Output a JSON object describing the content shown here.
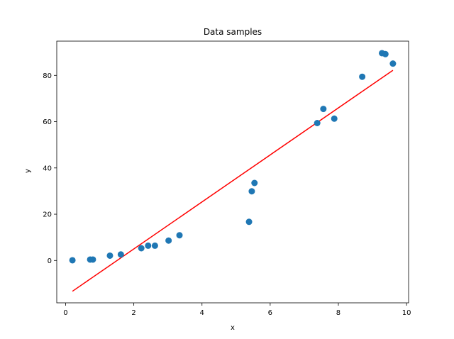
{
  "chart_data": {
    "type": "scatter",
    "title": "Data samples",
    "xlabel": "x",
    "ylabel": "y",
    "xlim": [
      -0.26,
      10.06
    ],
    "ylim": [
      -18.3,
      94.8
    ],
    "xticks": [
      0,
      2,
      4,
      6,
      8,
      10
    ],
    "yticks": [
      0,
      20,
      40,
      60,
      80
    ],
    "grid": false,
    "colors": {
      "points": "#1f77b4",
      "line": "#ff0000"
    },
    "series": [
      {
        "kind": "points",
        "x": [
          0.2,
          0.72,
          0.8,
          1.3,
          1.62,
          2.22,
          2.42,
          2.62,
          3.02,
          3.34,
          5.38,
          5.46,
          5.54,
          7.38,
          7.56,
          7.88,
          8.7,
          9.28,
          9.38,
          9.6
        ],
        "y": [
          0.1,
          0.4,
          0.4,
          2.1,
          2.6,
          5.3,
          6.4,
          6.4,
          8.6,
          10.9,
          16.7,
          29.9,
          33.5,
          59.4,
          65.5,
          61.3,
          79.4,
          89.6,
          89.2,
          85.1
        ]
      },
      {
        "kind": "line",
        "x": [
          0.2,
          9.6
        ],
        "y": [
          -13.3,
          82.2
        ]
      }
    ]
  }
}
